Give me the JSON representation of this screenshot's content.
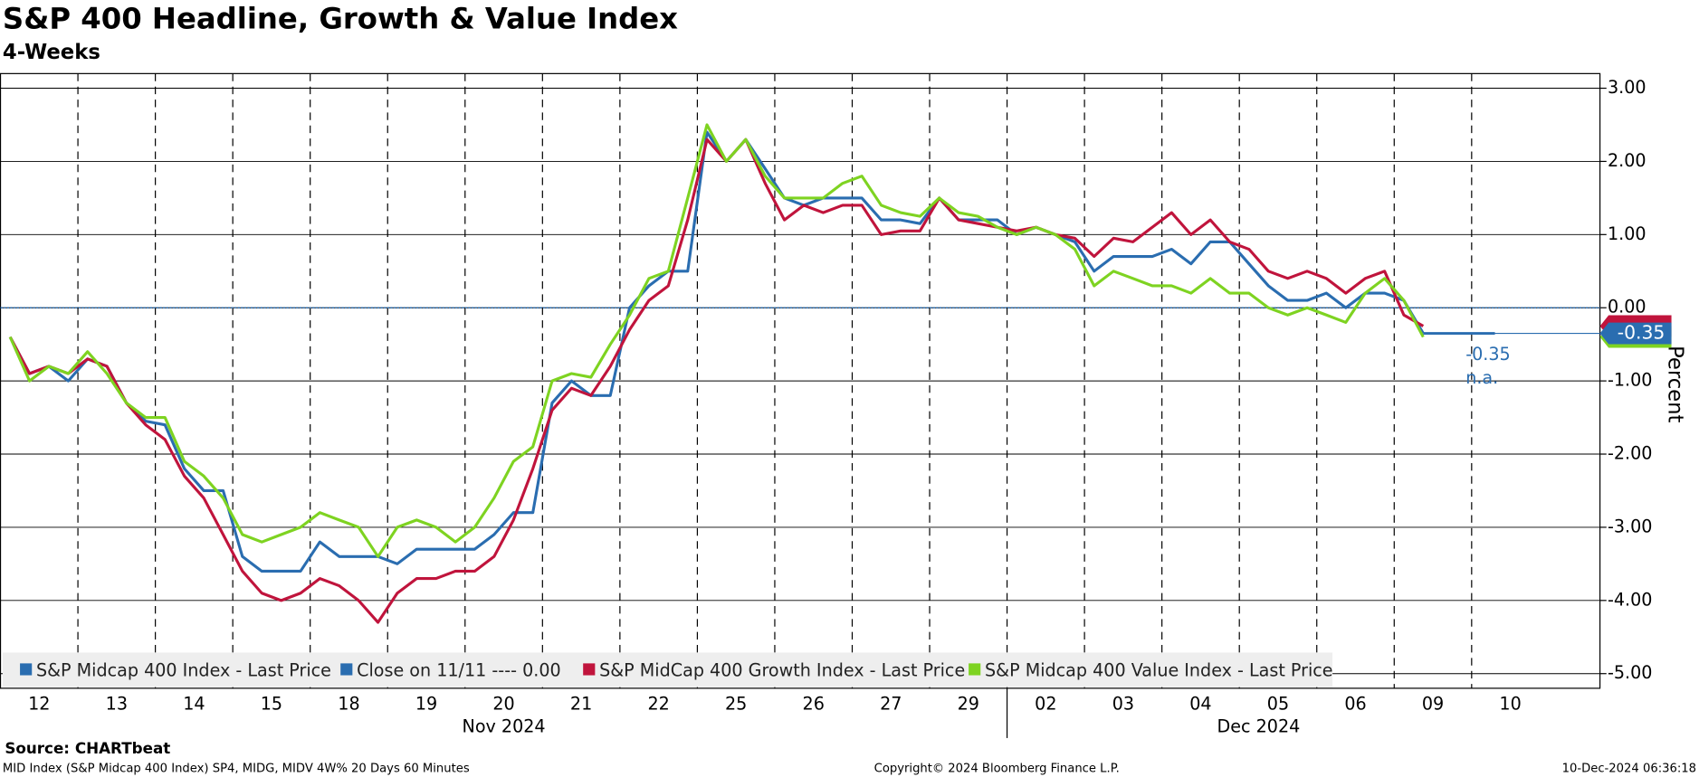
{
  "chart_data": {
    "type": "line",
    "title": "S&P 400 Headline, Growth & Value Index",
    "subtitle": "4-Weeks",
    "y_axis_label": "Percent",
    "day_labels": [
      "12",
      "13",
      "14",
      "15",
      "18",
      "19",
      "20",
      "21",
      "22",
      "25",
      "26",
      "27",
      "29",
      "02",
      "03",
      "04",
      "05",
      "06",
      "09",
      "10"
    ],
    "month_labels": [
      "Nov 2024",
      "Dec 2024"
    ],
    "series": [
      {
        "name": "S&P Midcap 400 Index - Last Price",
        "color": "#2a6db0",
        "values": [
          -0.4,
          -0.9,
          -0.8,
          -1.0,
          -0.7,
          -0.8,
          -1.3,
          -1.55,
          -1.6,
          -2.2,
          -2.5,
          -2.5,
          -3.4,
          -3.6,
          -3.6,
          -3.6,
          -3.2,
          -3.4,
          -3.4,
          -3.4,
          -3.5,
          -3.3,
          -3.3,
          -3.3,
          -3.3,
          -3.1,
          -2.8,
          -2.8,
          -1.3,
          -1.0,
          -1.2,
          -1.2,
          0.0,
          0.3,
          0.5,
          0.5,
          2.4,
          2.0,
          2.3,
          1.9,
          1.5,
          1.4,
          1.5,
          1.5,
          1.5,
          1.2,
          1.2,
          1.15,
          1.5,
          1.2,
          1.2,
          1.2,
          1.0,
          1.1,
          1.0,
          0.9,
          0.5,
          0.7,
          0.7,
          0.7,
          0.8,
          0.6,
          0.9,
          0.9,
          0.6,
          0.3,
          0.1,
          0.1,
          0.2,
          0.0,
          0.2,
          0.2,
          0.1,
          -0.35
        ]
      },
      {
        "name": "S&P MidCap 400 Growth Index - Last Price",
        "color": "#c0143c",
        "values": [
          -0.4,
          -0.9,
          -0.8,
          -0.9,
          -0.7,
          -0.8,
          -1.3,
          -1.6,
          -1.8,
          -2.3,
          -2.6,
          -3.1,
          -3.6,
          -3.9,
          -4.0,
          -3.9,
          -3.7,
          -3.8,
          -4.0,
          -4.3,
          -3.9,
          -3.7,
          -3.7,
          -3.6,
          -3.6,
          -3.4,
          -2.9,
          -2.2,
          -1.4,
          -1.1,
          -1.2,
          -0.8,
          -0.3,
          0.1,
          0.3,
          1.2,
          2.3,
          2.0,
          2.3,
          1.7,
          1.2,
          1.4,
          1.3,
          1.4,
          1.4,
          1.0,
          1.05,
          1.05,
          1.5,
          1.2,
          1.15,
          1.1,
          1.05,
          1.1,
          1.0,
          0.95,
          0.7,
          0.95,
          0.9,
          1.1,
          1.3,
          1.0,
          1.2,
          0.9,
          0.8,
          0.5,
          0.4,
          0.5,
          0.4,
          0.2,
          0.4,
          0.5,
          -0.1,
          -0.25
        ]
      },
      {
        "name": "S&P Midcap 400 Value Index - Last Price",
        "color": "#7ed321",
        "values": [
          -0.4,
          -1.0,
          -0.8,
          -0.9,
          -0.6,
          -0.9,
          -1.3,
          -1.5,
          -1.5,
          -2.1,
          -2.3,
          -2.6,
          -3.1,
          -3.2,
          -3.1,
          -3.0,
          -2.8,
          -2.9,
          -3.0,
          -3.4,
          -3.0,
          -2.9,
          -3.0,
          -3.2,
          -3.0,
          -2.6,
          -2.1,
          -1.9,
          -1.0,
          -0.9,
          -0.95,
          -0.5,
          -0.1,
          0.4,
          0.5,
          1.5,
          2.5,
          2.0,
          2.3,
          1.8,
          1.5,
          1.5,
          1.5,
          1.7,
          1.8,
          1.4,
          1.3,
          1.25,
          1.5,
          1.3,
          1.25,
          1.1,
          1.0,
          1.1,
          1.0,
          0.8,
          0.3,
          0.5,
          0.4,
          0.3,
          0.3,
          0.2,
          0.4,
          0.2,
          0.2,
          0.0,
          -0.1,
          0.0,
          -0.1,
          -0.2,
          0.2,
          0.4,
          0.1,
          -0.4
        ]
      }
    ],
    "reference_line": {
      "name": "Close on 11/11 ---- 0.00",
      "value": 0,
      "color": "#2a6db0"
    },
    "last_value_label": "-0.35",
    "annotations": [
      "-0.35",
      "n.a."
    ],
    "ylim": [
      -5.2,
      3.2
    ],
    "yticks": [
      {
        "value": 3,
        "label": "3.00"
      },
      {
        "value": 2,
        "label": "2.00"
      },
      {
        "value": 1,
        "label": "1.00"
      },
      {
        "value": 0,
        "label": "0.00"
      },
      {
        "value": -1,
        "label": "-1.00"
      },
      {
        "value": -2,
        "label": "-2.00"
      },
      {
        "value": -3,
        "label": "-3.00"
      },
      {
        "value": -4,
        "label": "-4.00"
      },
      {
        "value": -5,
        "label": "-5.00"
      }
    ],
    "grid": true,
    "source": "Source: CHARTbeat",
    "footer_left": "MID Index (S&P Midcap 400 Index) SP4, MIDG, MIDV 4W% 20 Days 60 Minutes",
    "footer_center": "Copyright© 2024 Bloomberg Finance L.P.",
    "footer_right": "10-Dec-2024 06:36:18"
  }
}
